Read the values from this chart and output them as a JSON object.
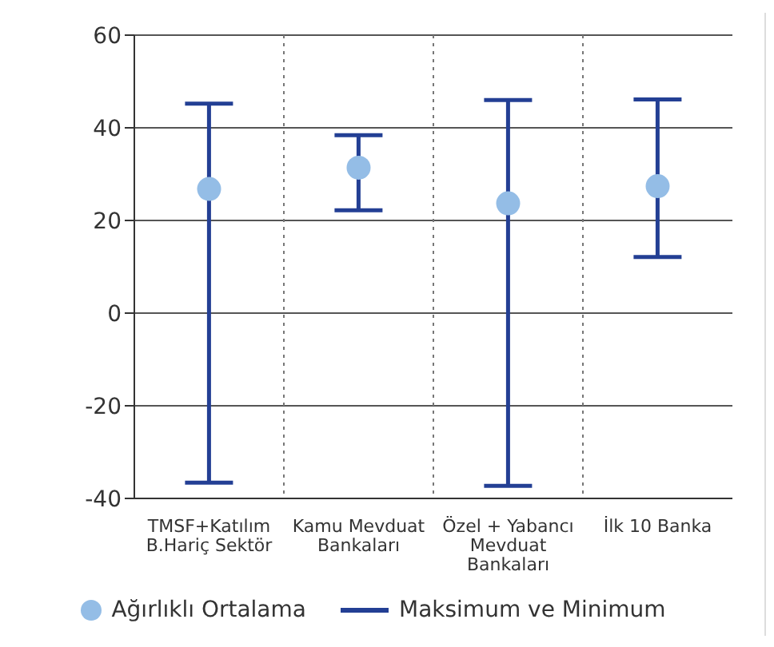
{
  "chart_data": {
    "type": "scatter",
    "categories": [
      "TMSF+Katılım B.Hariç Sektör",
      "Kamu Mevduat Bankaları",
      "Özel + Yabancı Mevduat Bankaları",
      "İlk 10 Banka"
    ],
    "series": [
      {
        "name": "Ağırlıklı Ortalama",
        "color": "#94bde6",
        "values": [
          26.8,
          31.4,
          23.7,
          27.4
        ]
      },
      {
        "name": "Maksimum ve Minimum",
        "type": "bar",
        "color": "#233f94",
        "base": [
          -36.6,
          22.2,
          -37.3,
          12.1
        ],
        "values": [
          81.8,
          16.2,
          83.3,
          34
        ]
      }
    ],
    "ylim": [
      -40,
      60
    ],
    "yticks": [
      -40,
      -20,
      0,
      20,
      40,
      60
    ],
    "grid": true,
    "legend": "bottom",
    "marker": "circle"
  }
}
